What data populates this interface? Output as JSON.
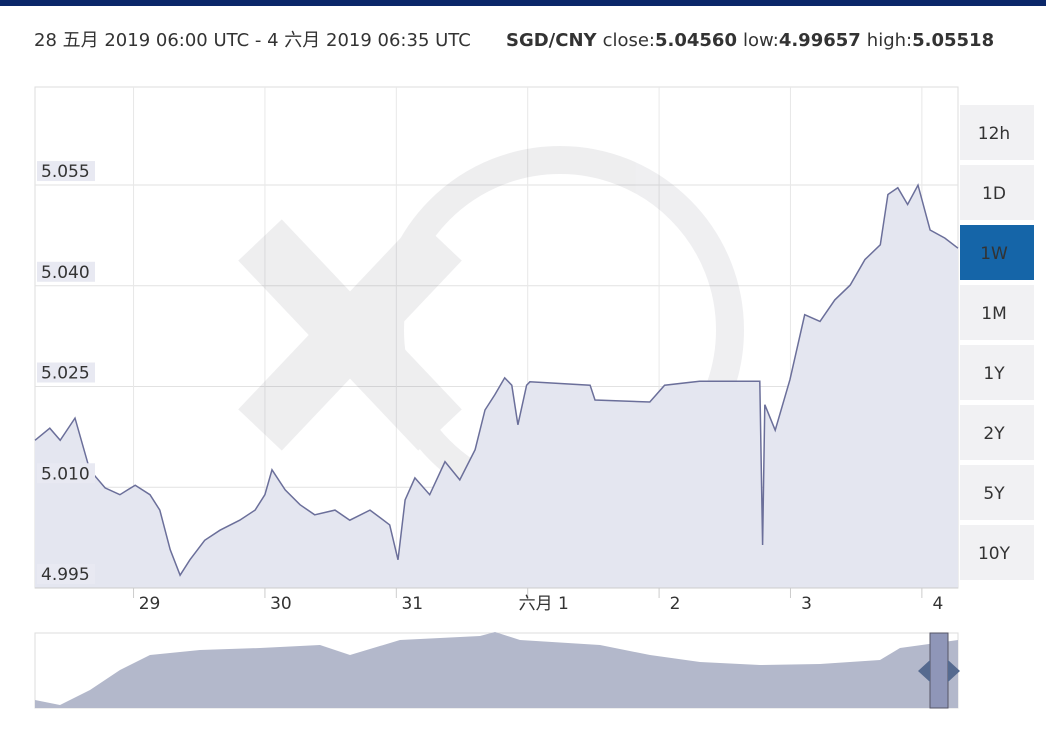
{
  "header": {
    "range": "28 五月 2019 06:00 UTC - 4 六月 2019 06:35 UTC",
    "pair": "SGD/CNY",
    "close_label": "close:",
    "close": "5.04560",
    "low_label": "low:",
    "low": "4.99657",
    "high_label": "high:",
    "high": "5.05518"
  },
  "range_buttons": {
    "labels": [
      "12h",
      "1D",
      "1W",
      "1M",
      "1Y",
      "2Y",
      "5Y",
      "10Y"
    ],
    "selected": 2
  },
  "chart_data": {
    "type": "area",
    "color": "#6b6f9a",
    "fill": "#e4e6f0",
    "grid": true,
    "x": [
      0,
      2.7,
      4.6,
      7.3,
      10,
      12.8,
      15.5,
      18.3,
      21,
      22.8,
      24.7,
      26.5,
      28.3,
      31,
      33.8,
      37.4,
      40.2,
      42,
      43.3,
      45.7,
      48.4,
      51.1,
      54.8,
      57.5,
      61.2,
      64.8,
      66.3,
      67.6,
      69.4,
      72.1,
      74.9,
      77.6,
      80.4,
      82.2,
      84,
      85.8,
      87.1,
      88.2,
      89.8,
      90.4,
      101.4,
      102.3,
      112.3,
      115,
      121.4,
      132.4,
      132.9,
      133.3,
      135.2,
      137.9,
      140.6,
      143.4,
      146.1,
      148.9,
      151.6,
      154.4,
      155.8,
      157.6,
      159.4,
      161.3,
      163.5,
      166.2,
      168.6
    ],
    "values": [
      5.017,
      5.0188,
      5.017,
      5.0203,
      5.0126,
      5.0099,
      5.0089,
      5.0103,
      5.0089,
      5.0066,
      5.0007,
      4.9969,
      4.9992,
      5.0021,
      5.0036,
      5.0051,
      5.0066,
      5.0089,
      5.0126,
      5.0096,
      5.0074,
      5.0059,
      5.0066,
      5.0051,
      5.0066,
      5.0044,
      4.9992,
      5.0081,
      5.0114,
      5.0089,
      5.0138,
      5.0111,
      5.0156,
      5.0215,
      5.0238,
      5.0263,
      5.0252,
      5.0193,
      5.0252,
      5.0257,
      5.0252,
      5.023,
      5.0227,
      5.0252,
      5.0258,
      5.0258,
      5.0014,
      5.0223,
      5.0185,
      5.026,
      5.0357,
      5.0347,
      5.0379,
      5.0401,
      5.0439,
      5.0461,
      5.0536,
      5.0546,
      5.0521,
      5.055,
      5.0483,
      5.0471,
      5.0456
    ],
    "xlim": [
      0,
      168.6
    ],
    "xticks": [
      {
        "value": 18,
        "label": "29"
      },
      {
        "value": 42,
        "label": "30"
      },
      {
        "value": 66,
        "label": "31"
      },
      {
        "value": 90,
        "label": "六月 1"
      },
      {
        "value": 114,
        "label": "2"
      },
      {
        "value": 138,
        "label": "3"
      },
      {
        "value": 162,
        "label": "4"
      }
    ],
    "ylim": [
      4.995,
      5.0696
    ],
    "yticks": [
      4.995,
      {
        "value": 5.01,
        "label": "5.010"
      },
      5.025,
      {
        "value": 5.04,
        "label": "5.040"
      },
      5.055
    ]
  }
}
